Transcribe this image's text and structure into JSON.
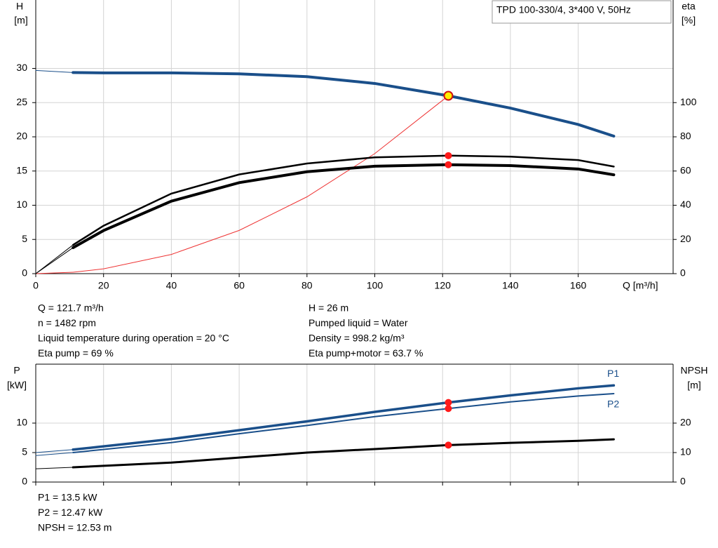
{
  "chart_data": [
    {
      "type": "line",
      "annotation": "TPD 100-330/4, 3*400 V, 50Hz",
      "ylabel": "H",
      "yunit": "[m]",
      "y2label": "eta",
      "y2unit": "[%]",
      "xlabel": "Q [m³/h]",
      "x": [
        0,
        11,
        20,
        40,
        60,
        80,
        100,
        121.7,
        140,
        160,
        170.5
      ],
      "duty_point": {
        "x": 121.7
      },
      "series": [
        {
          "color": "#ee3333",
          "width": 1,
          "values": [
            0,
            0.21,
            0.7,
            2.81,
            6.32,
            11.23,
            17.55,
            26,
            null,
            null,
            null
          ]
        },
        {
          "color": "#000000",
          "width": 2.5,
          "axis": "y2",
          "marker_color": "#ff1a1a",
          "values": [
            0,
            16.8,
            28,
            46.8,
            58,
            64.4,
            68,
            69,
            68.4,
            66.4,
            62.6
          ]
        },
        {
          "color": "#000000",
          "width": 4,
          "axis": "y2",
          "marker_color": "#ff1a1a",
          "values": [
            0,
            15.2,
            25.2,
            42.4,
            53.2,
            59.6,
            62.8,
            63.7,
            63.2,
            61.2,
            57.8
          ]
        },
        {
          "color": "#1a4f8a",
          "width": 4,
          "marker_color": "#ffee00",
          "values": [
            29.7,
            29.4,
            29.35,
            29.35,
            29.2,
            28.8,
            27.8,
            26,
            24.2,
            21.8,
            20.1
          ]
        }
      ],
      "xlim": [
        0,
        188
      ],
      "xticks": [
        0,
        20,
        40,
        60,
        80,
        100,
        120,
        140,
        160
      ],
      "ylim": [
        0,
        40
      ],
      "yticks": [
        0,
        5,
        10,
        15,
        20,
        25,
        30
      ],
      "y2lim": [
        0,
        160
      ],
      "y2ticks": [
        0,
        20,
        40,
        60,
        80,
        100
      ],
      "grid": true
    },
    {
      "type": "line",
      "ylabel": "P",
      "yunit": "[kW]",
      "y2label": "NPSH",
      "y2unit": "[m]",
      "x": [
        0,
        11,
        40,
        60,
        80,
        100,
        121.7,
        140,
        160,
        170.5
      ],
      "duty_point": {
        "x": 121.7
      },
      "series": [
        {
          "name": "P1",
          "color": "#1a4f8a",
          "width": 3.5,
          "marker_color": "#ff1a1a",
          "values": [
            5.0,
            5.5,
            7.3,
            8.8,
            10.3,
            11.9,
            13.5,
            14.7,
            15.9,
            16.4
          ]
        },
        {
          "name": "P2",
          "color": "#1a4f8a",
          "width": 2,
          "marker_color": "#ff1a1a",
          "values": [
            4.5,
            5.0,
            6.7,
            8.2,
            9.6,
            11.1,
            12.47,
            13.6,
            14.6,
            15.0
          ]
        },
        {
          "color": "#000000",
          "width": 3,
          "axis": "y2",
          "marker_color": "#ff1a1a",
          "values": [
            4.5,
            5.0,
            6.6,
            8.3,
            10,
            11.2,
            12.53,
            13.3,
            14,
            14.5
          ]
        }
      ],
      "xlim": [
        0,
        188
      ],
      "xticks": [
        0,
        20,
        40,
        60,
        80,
        100,
        120,
        140,
        160
      ],
      "ylim": [
        0,
        20
      ],
      "yticks": [
        0,
        5,
        10
      ],
      "y2lim": [
        0,
        40
      ],
      "y2ticks": [
        0,
        10,
        20
      ],
      "grid": true
    }
  ],
  "info": {
    "left": [
      "Q = 121.7 m³/h",
      "n = 1482 rpm",
      "Liquid temperature during operation = 20 °C",
      "Eta pump = 69 %"
    ],
    "right": [
      "H = 26 m",
      "Pumped liquid = Water",
      "Density = 998.2 kg/m³",
      "Eta pump+motor = 63.7 %"
    ],
    "bottom": [
      "P1 = 13.5 kW",
      "P2 = 12.47 kW",
      "NPSH = 12.53 m"
    ]
  }
}
